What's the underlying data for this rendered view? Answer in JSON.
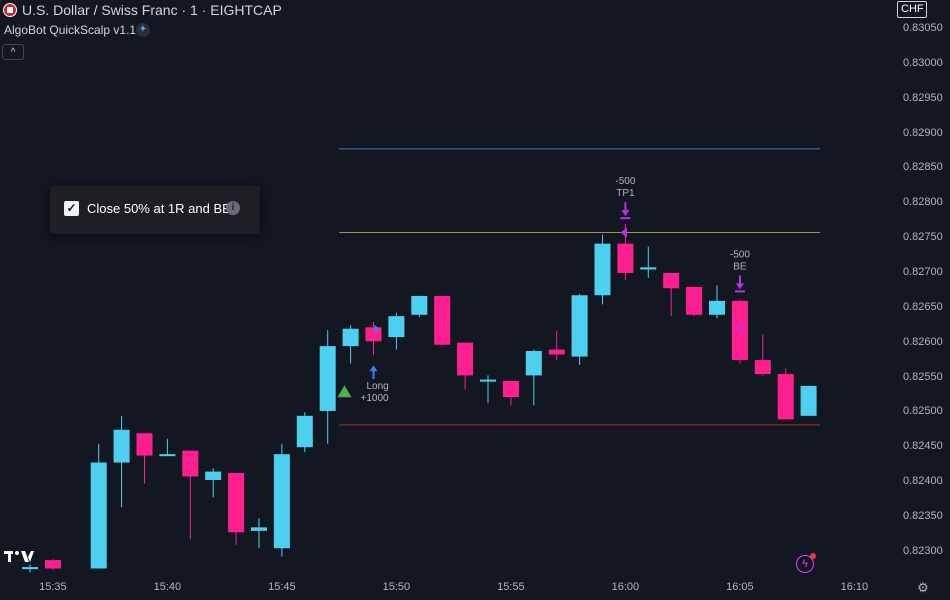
{
  "header": {
    "symbol_title": "U.S. Dollar / Swiss Franc · 1 · EIGHTCAP",
    "indicator_title": "AlgoBot QuickScalp v1.1",
    "collapse_glyph": "^"
  },
  "popup": {
    "checked": true,
    "label": "Close 50% at 1R and BE"
  },
  "price_axis": {
    "currency": "CHF",
    "labels": [
      "0.83050",
      "0.83000",
      "0.82950",
      "0.82900",
      "0.82850",
      "0.82800",
      "0.82750",
      "0.82700",
      "0.82650",
      "0.82600",
      "0.82550",
      "0.82500",
      "0.82450",
      "0.82400",
      "0.82350",
      "0.82300"
    ]
  },
  "time_axis": {
    "labels": [
      "15:35",
      "15:40",
      "15:45",
      "15:50",
      "15:55",
      "16:00",
      "16:05",
      "16:10"
    ]
  },
  "colors": {
    "up": "#4dd0f0",
    "down": "#ff1f8e",
    "tp_line": "#4a70c8",
    "entry_line": "#a09a40",
    "sl_line": "#b02a2a",
    "signal": "#c030e0",
    "long_arrow": "#3f7cf5"
  },
  "chart_data": {
    "type": "candlestick",
    "timeframe": "1",
    "x_unit": "minutes_from_15:34",
    "candles": [
      {
        "t": 0,
        "o": 0.82275,
        "h": 0.82282,
        "l": 0.8227,
        "c": 0.82278
      },
      {
        "t": 1,
        "o": 0.82288,
        "h": 0.8229,
        "l": 0.82274,
        "c": 0.82276
      },
      {
        "t": 3,
        "o": 0.82276,
        "h": 0.82455,
        "l": 0.82276,
        "c": 0.82428
      },
      {
        "t": 4,
        "o": 0.82428,
        "h": 0.82495,
        "l": 0.82364,
        "c": 0.82475
      },
      {
        "t": 5,
        "o": 0.8247,
        "h": 0.8247,
        "l": 0.82398,
        "c": 0.82438
      },
      {
        "t": 6,
        "o": 0.8244,
        "h": 0.82462,
        "l": 0.82438,
        "c": 0.8244
      },
      {
        "t": 7,
        "o": 0.82445,
        "h": 0.82445,
        "l": 0.82318,
        "c": 0.82408
      },
      {
        "t": 8,
        "o": 0.82403,
        "h": 0.8242,
        "l": 0.82378,
        "c": 0.82415
      },
      {
        "t": 9,
        "o": 0.82413,
        "h": 0.82413,
        "l": 0.8231,
        "c": 0.82328
      },
      {
        "t": 10,
        "o": 0.8233,
        "h": 0.82348,
        "l": 0.82305,
        "c": 0.82335
      },
      {
        "t": 11,
        "o": 0.82305,
        "h": 0.82455,
        "l": 0.82293,
        "c": 0.8244
      },
      {
        "t": 12,
        "o": 0.8245,
        "h": 0.825,
        "l": 0.82443,
        "c": 0.82495
      },
      {
        "t": 13,
        "o": 0.82502,
        "h": 0.82618,
        "l": 0.82455,
        "c": 0.82595
      },
      {
        "t": 14,
        "o": 0.82595,
        "h": 0.82625,
        "l": 0.8257,
        "c": 0.8262
      },
      {
        "t": 15,
        "o": 0.82622,
        "h": 0.8263,
        "l": 0.82582,
        "c": 0.82602
      },
      {
        "t": 16,
        "o": 0.82608,
        "h": 0.82643,
        "l": 0.8259,
        "c": 0.82638
      },
      {
        "t": 17,
        "o": 0.8264,
        "h": 0.82667,
        "l": 0.82637,
        "c": 0.82667
      },
      {
        "t": 18,
        "o": 0.82667,
        "h": 0.82667,
        "l": 0.82596,
        "c": 0.82597
      },
      {
        "t": 19,
        "o": 0.826,
        "h": 0.826,
        "l": 0.82533,
        "c": 0.82553
      },
      {
        "t": 20,
        "o": 0.82547,
        "h": 0.82553,
        "l": 0.82513,
        "c": 0.82547
      },
      {
        "t": 21,
        "o": 0.82545,
        "h": 0.82545,
        "l": 0.8251,
        "c": 0.82522
      },
      {
        "t": 22,
        "o": 0.82553,
        "h": 0.8259,
        "l": 0.8251,
        "c": 0.82588
      },
      {
        "t": 23,
        "o": 0.8259,
        "h": 0.82617,
        "l": 0.82575,
        "c": 0.82583
      },
      {
        "t": 24,
        "o": 0.8258,
        "h": 0.8267,
        "l": 0.82568,
        "c": 0.82668
      },
      {
        "t": 25,
        "o": 0.82668,
        "h": 0.82755,
        "l": 0.82655,
        "c": 0.82742
      },
      {
        "t": 26,
        "o": 0.82742,
        "h": 0.8277,
        "l": 0.8269,
        "c": 0.827
      },
      {
        "t": 27,
        "o": 0.82705,
        "h": 0.82738,
        "l": 0.82693,
        "c": 0.82708
      },
      {
        "t": 28,
        "o": 0.827,
        "h": 0.827,
        "l": 0.82638,
        "c": 0.82678
      },
      {
        "t": 29,
        "o": 0.8268,
        "h": 0.8268,
        "l": 0.82638,
        "c": 0.8264
      },
      {
        "t": 30,
        "o": 0.8264,
        "h": 0.82682,
        "l": 0.82635,
        "c": 0.8266
      },
      {
        "t": 31,
        "o": 0.8266,
        "h": 0.82662,
        "l": 0.8257,
        "c": 0.82575
      },
      {
        "t": 32,
        "o": 0.82575,
        "h": 0.82612,
        "l": 0.82552,
        "c": 0.82555
      },
      {
        "t": 33,
        "o": 0.82555,
        "h": 0.82563,
        "l": 0.8249,
        "c": 0.8249
      },
      {
        "t": 34,
        "o": 0.82495,
        "h": 0.82538,
        "l": 0.82495,
        "c": 0.82538
      }
    ],
    "levels": [
      {
        "name": "tp",
        "price": 0.82878,
        "t_from": 13.5,
        "t_to": 34.5
      },
      {
        "name": "entry",
        "price": 0.82758,
        "t_from": 13.5,
        "t_to": 34.5
      },
      {
        "name": "sl",
        "price": 0.82482,
        "t_from": 13.5,
        "t_to": 34.5
      }
    ],
    "signals": [
      {
        "type": "long",
        "t": 15,
        "label_1": "Long",
        "label_2": "+1000"
      },
      {
        "type": "tp1",
        "t": 26,
        "label_1": "-500",
        "label_2": "TP1"
      },
      {
        "type": "be",
        "t": 31,
        "label_1": "-500",
        "label_2": "BE"
      }
    ]
  }
}
